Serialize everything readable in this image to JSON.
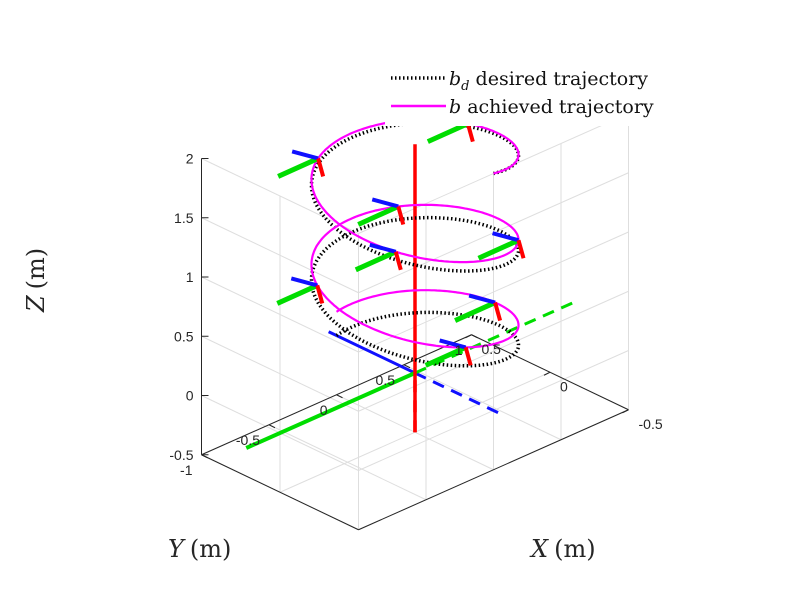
{
  "chart_data": {
    "type": "line",
    "projection": "3d",
    "title": "",
    "xlabel": "X (m)",
    "ylabel": "Y (m)",
    "zlabel": "Z (m)",
    "xlabel_var": "X",
    "xlabel_unit": "(m)",
    "ylabel_var": "Y",
    "ylabel_unit": "(m)",
    "zlabel_var": "Z",
    "zlabel_unit": "(m)",
    "xlim": [
      -0.5,
      0.5
    ],
    "ylim": [
      -1,
      1
    ],
    "zlim": [
      -0.5,
      2
    ],
    "xticks": [
      "-0.5",
      "0",
      "0.5"
    ],
    "yticks": [
      "-1",
      "-0.5",
      "0",
      "0.5",
      "1"
    ],
    "zticks": [
      "-0.5",
      "0",
      "0.5",
      "1",
      "1.5",
      "2"
    ],
    "grid": true,
    "legend_position": "top-right",
    "series": [
      {
        "name": "b_d desired trajectory",
        "legend_symbol": "b",
        "legend_subscript": "d",
        "legend_rest": " desired trajectory",
        "color": "#000000",
        "style": "dotted",
        "parametric": "helix",
        "radius": 0.5,
        "z_range": [
          0,
          2
        ],
        "turns": 2.5
      },
      {
        "name": "b achieved trajectory",
        "legend_symbol": "b",
        "legend_subscript": "",
        "legend_rest": " achieved trajectory",
        "color": "#ff00ff",
        "style": "solid",
        "parametric": "helix",
        "radius": 0.5,
        "z_range": [
          0.2,
          2
        ],
        "turns": 2.5
      }
    ],
    "frame_axes": {
      "colors": {
        "x": "#1010ff",
        "y": "#00dd00",
        "z": "#ff0000"
      },
      "world_origin": [
        0,
        0,
        0
      ]
    }
  }
}
